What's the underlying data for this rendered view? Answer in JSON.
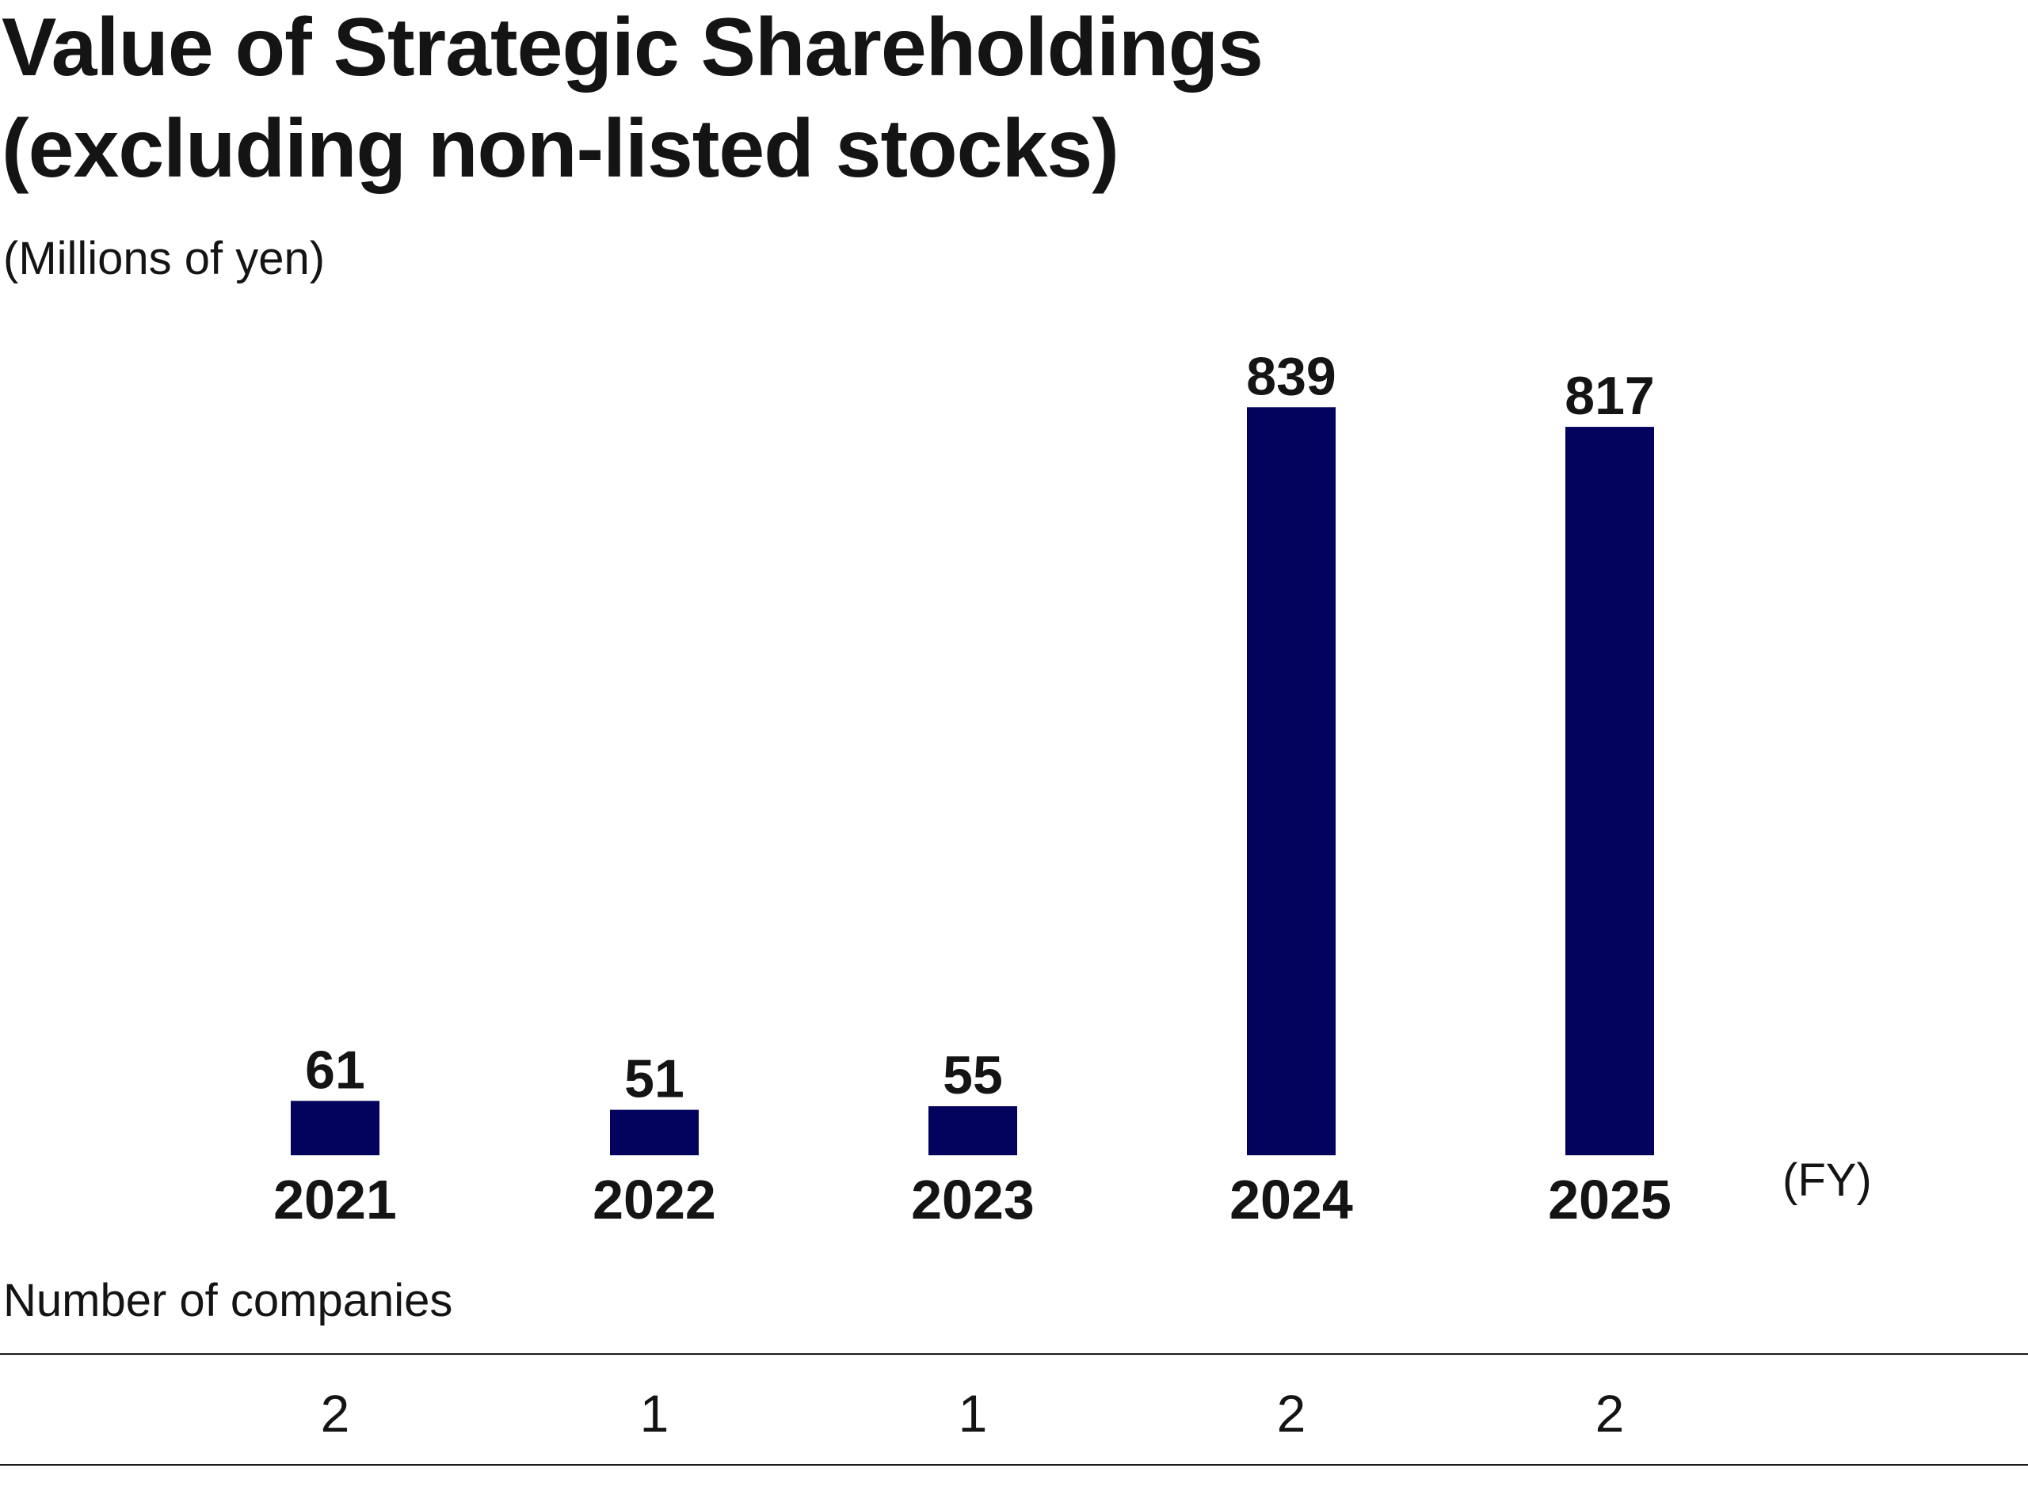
{
  "chart_data": {
    "type": "bar",
    "title_line1": "Value of Strategic Shareholdings",
    "title_line2": "(excluding non-listed stocks)",
    "unit_label": "(Millions of yen)",
    "x_unit_label": "(FY)",
    "categories": [
      "2021",
      "2022",
      "2023",
      "2024",
      "2025"
    ],
    "values": [
      61,
      51,
      55,
      839,
      817
    ],
    "data_labels": [
      "61",
      "51",
      "55",
      "839",
      "817"
    ],
    "bar_color": "#03035e",
    "grid": false,
    "legend": "none"
  },
  "companies": {
    "label": "Number of companies",
    "values": [
      "2",
      "1",
      "1",
      "2",
      "2"
    ]
  }
}
